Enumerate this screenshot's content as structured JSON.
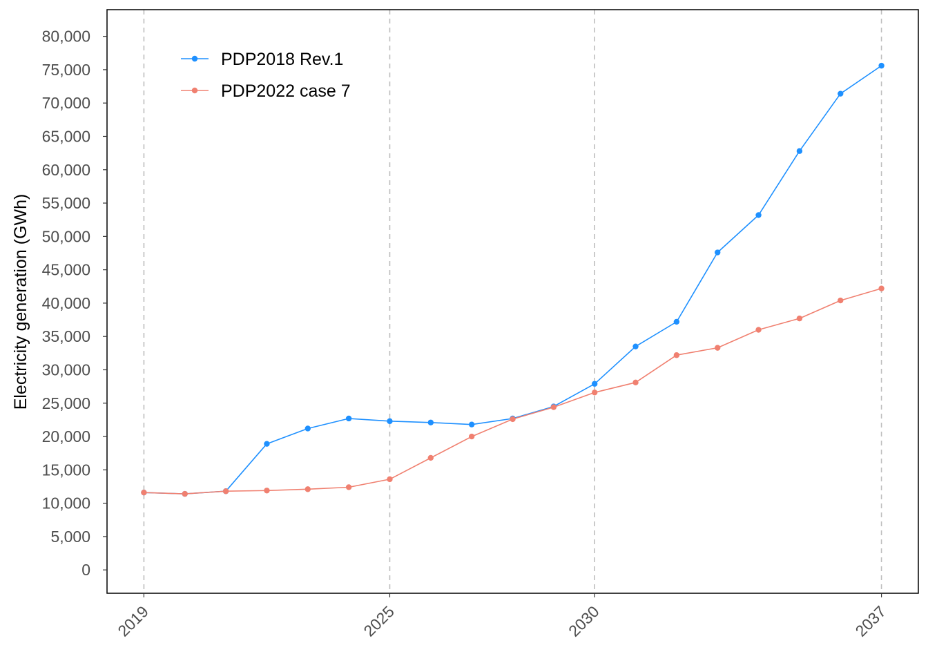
{
  "chart_data": {
    "type": "line",
    "title": "",
    "xlabel": "",
    "ylabel": "Electricity generation (GWh)",
    "x": [
      2019,
      2020,
      2021,
      2022,
      2023,
      2024,
      2025,
      2026,
      2027,
      2028,
      2029,
      2030,
      2031,
      2032,
      2033,
      2034,
      2035,
      2036,
      2037
    ],
    "x_ticks": [
      "2019",
      "2025",
      "2030",
      "2037"
    ],
    "x_tick_years": [
      2019,
      2025,
      2030,
      2037
    ],
    "y_ticks": [
      "0",
      "5,000",
      "10,000",
      "15,000",
      "20,000",
      "25,000",
      "30,000",
      "35,000",
      "40,000",
      "45,000",
      "50,000",
      "55,000",
      "60,000",
      "65,000",
      "70,000",
      "75,000",
      "80,000"
    ],
    "ylim": [
      -3500,
      84000
    ],
    "xlim": [
      2018.1,
      2037.9
    ],
    "grid": "vertical dashed at x ticks",
    "legend_position": "top-left",
    "series": [
      {
        "name": "PDP2018 Rev.1",
        "color": "#1e90ff",
        "values": [
          11600,
          11400,
          11800,
          18900,
          21200,
          22700,
          22300,
          22100,
          21800,
          22700,
          24500,
          27900,
          33500,
          37200,
          47600,
          53200,
          62800,
          71400,
          75600
        ]
      },
      {
        "name": "PDP2022 case 7",
        "color": "#f08070",
        "values": [
          11600,
          11400,
          11800,
          11900,
          12100,
          12400,
          13600,
          16800,
          20000,
          22600,
          24400,
          26600,
          28100,
          32200,
          33300,
          36000,
          37700,
          40400,
          42200
        ]
      }
    ]
  }
}
